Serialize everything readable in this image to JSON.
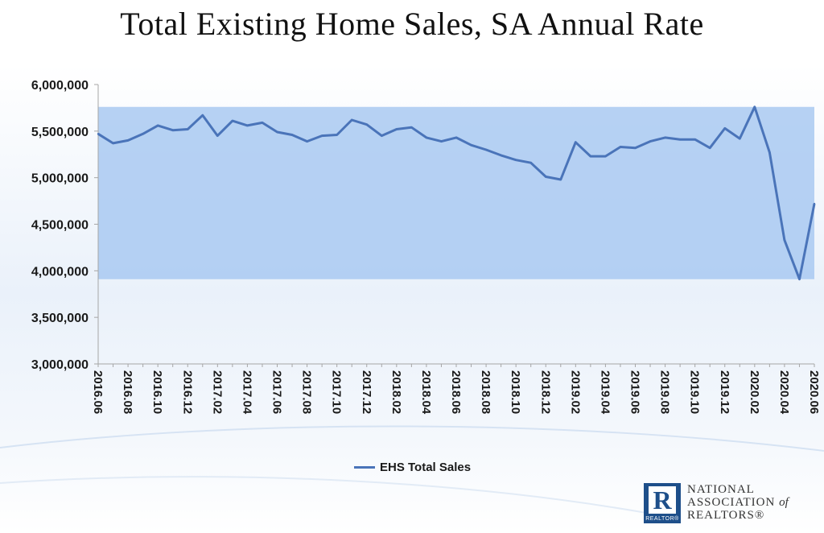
{
  "chart_data": {
    "type": "line",
    "title": "Total Existing Home Sales, SA Annual Rate",
    "xlabel": "",
    "ylabel": "",
    "ylim": [
      3000000,
      6000000
    ],
    "yticks": [
      3000000,
      3500000,
      4000000,
      4500000,
      5000000,
      5500000,
      6000000
    ],
    "ytick_labels": [
      "3,000,000",
      "3,500,000",
      "4,000,000",
      "4,500,000",
      "5,000,000",
      "5,500,000",
      "6,000,000"
    ],
    "x_labels": [
      "2016.06",
      "2016.08",
      "2016.10",
      "2016.12",
      "2017.02",
      "2017.04",
      "2017.06",
      "2017.08",
      "2017.10",
      "2017.12",
      "2018.02",
      "2018.04",
      "2018.06",
      "2018.08",
      "2018.10",
      "2018.12",
      "2019.02",
      "2019.04",
      "2019.06",
      "2019.08",
      "2019.10",
      "2019.12",
      "2020.02",
      "2020.04",
      "2020.06"
    ],
    "x": [
      "2016.06",
      "2016.07",
      "2016.08",
      "2016.09",
      "2016.10",
      "2016.11",
      "2016.12",
      "2017.01",
      "2017.02",
      "2017.03",
      "2017.04",
      "2017.05",
      "2017.06",
      "2017.07",
      "2017.08",
      "2017.09",
      "2017.10",
      "2017.11",
      "2017.12",
      "2018.01",
      "2018.02",
      "2018.03",
      "2018.04",
      "2018.05",
      "2018.06",
      "2018.07",
      "2018.08",
      "2018.09",
      "2018.10",
      "2018.11",
      "2018.12",
      "2019.01",
      "2019.02",
      "2019.03",
      "2019.04",
      "2019.05",
      "2019.06",
      "2019.07",
      "2019.08",
      "2019.09",
      "2019.10",
      "2019.11",
      "2019.12",
      "2020.01",
      "2020.02",
      "2020.03",
      "2020.04",
      "2020.05",
      "2020.06"
    ],
    "series": [
      {
        "name": "EHS Total Sales",
        "color": "#4a74b9",
        "values": [
          5470000,
          5370000,
          5400000,
          5470000,
          5560000,
          5510000,
          5520000,
          5670000,
          5450000,
          5610000,
          5560000,
          5590000,
          5490000,
          5460000,
          5390000,
          5450000,
          5460000,
          5620000,
          5570000,
          5450000,
          5520000,
          5540000,
          5430000,
          5390000,
          5430000,
          5350000,
          5300000,
          5240000,
          5190000,
          5160000,
          5010000,
          4980000,
          5380000,
          5230000,
          5230000,
          5330000,
          5320000,
          5390000,
          5430000,
          5410000,
          5410000,
          5320000,
          5530000,
          5420000,
          5760000,
          5270000,
          4330000,
          3910000,
          4720000
        ]
      }
    ],
    "highlight_band": {
      "y_from": 3910000,
      "y_to": 5760000,
      "color": "#a9c9f1"
    },
    "legend_position": "bottom",
    "grid": false
  },
  "legend": {
    "label": "EHS Total Sales"
  },
  "logo": {
    "line1": "NATIONAL",
    "line2": "ASSOCIATION",
    "of": "of",
    "line3": "REALTORS®",
    "mark_letter": "R",
    "mark_sub": "REALTOR®"
  }
}
